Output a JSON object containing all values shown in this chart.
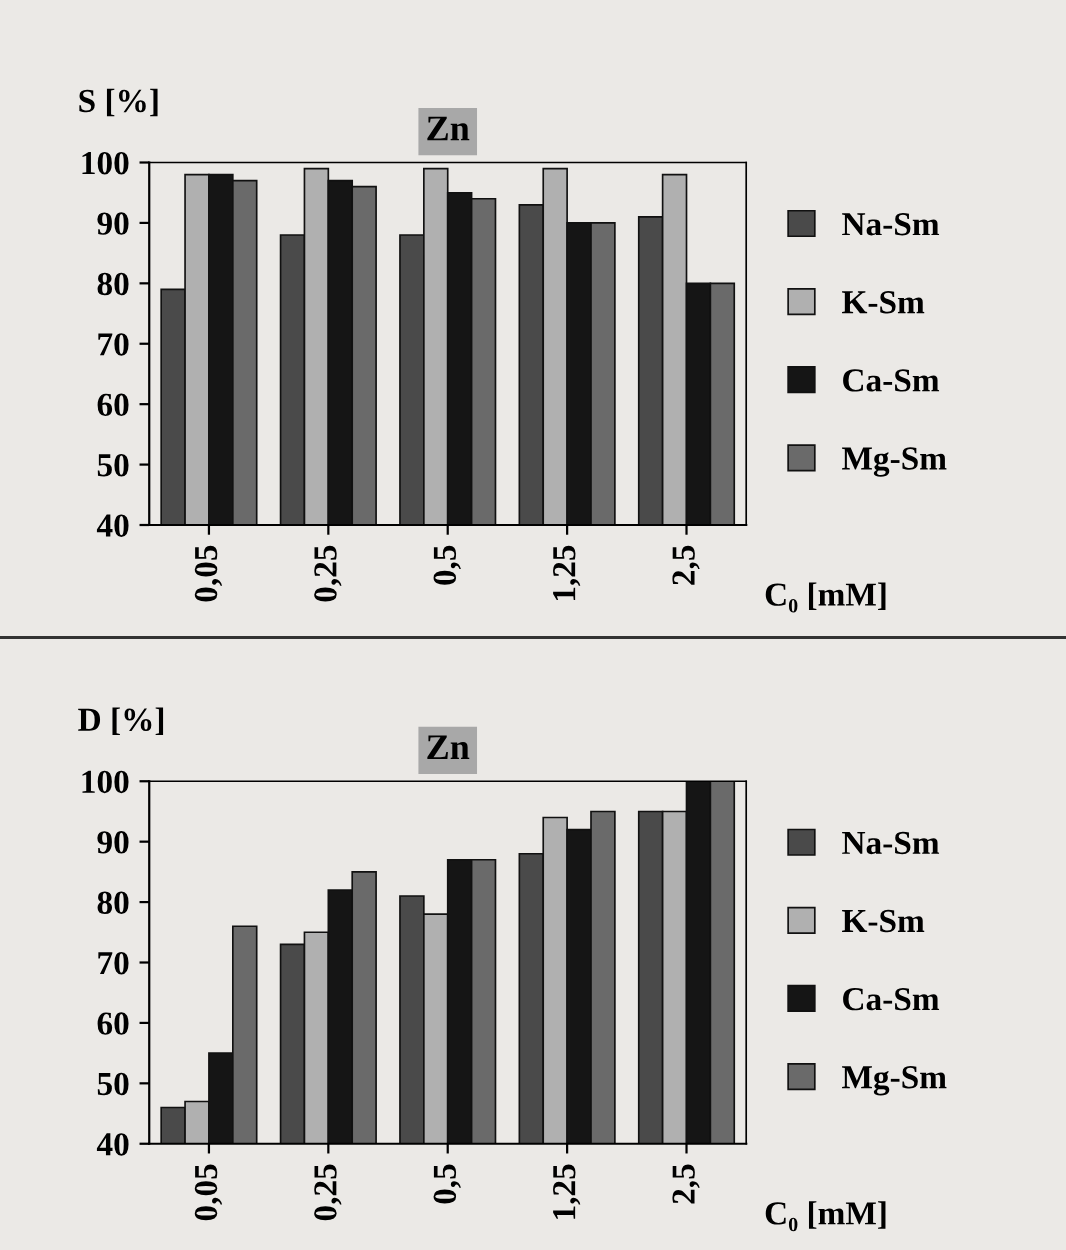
{
  "chart_data": [
    {
      "type": "bar",
      "title": "Zn",
      "ylabel": "S [%]",
      "xlabel": "C₀ [mM]",
      "categories": [
        "0,05",
        "0,25",
        "0,5",
        "1,25",
        "2,5"
      ],
      "series": [
        {
          "name": "Na-Sm",
          "color": "#4a4a4a",
          "values": [
            79,
            88,
            88,
            93,
            91
          ]
        },
        {
          "name": "K-Sm",
          "color": "#b0b0b0",
          "values": [
            98,
            99,
            99,
            99,
            98
          ]
        },
        {
          "name": "Ca-Sm",
          "color": "#151515",
          "values": [
            98,
            97,
            95,
            90,
            80
          ]
        },
        {
          "name": "Mg-Sm",
          "color": "#6a6a6a",
          "values": [
            97,
            96,
            94,
            90,
            80
          ]
        }
      ],
      "ylim": [
        40,
        100
      ],
      "yticks": [
        40,
        50,
        60,
        70,
        80,
        90,
        100
      ],
      "grid": false,
      "legend": "right"
    },
    {
      "type": "bar",
      "title": "Zn",
      "ylabel": "D [%]",
      "xlabel": "C₀ [mM]",
      "categories": [
        "0,05",
        "0,25",
        "0,5",
        "1,25",
        "2,5"
      ],
      "series": [
        {
          "name": "Na-Sm",
          "color": "#4a4a4a",
          "values": [
            46,
            73,
            81,
            88,
            95
          ]
        },
        {
          "name": "K-Sm",
          "color": "#b0b0b0",
          "values": [
            47,
            75,
            78,
            94,
            95
          ]
        },
        {
          "name": "Ca-Sm",
          "color": "#151515",
          "values": [
            55,
            82,
            87,
            92,
            100
          ]
        },
        {
          "name": "Mg-Sm",
          "color": "#6a6a6a",
          "values": [
            76,
            85,
            87,
            95,
            100
          ]
        }
      ],
      "ylim": [
        40,
        100
      ],
      "yticks": [
        40,
        50,
        60,
        70,
        80,
        90,
        100
      ],
      "grid": false,
      "legend": "right"
    }
  ]
}
